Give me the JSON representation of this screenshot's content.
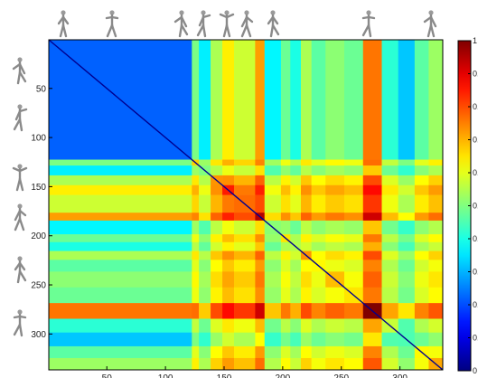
{
  "chart_data": {
    "type": "heatmap",
    "title": "",
    "xlabel": "",
    "ylabel": "",
    "n": 336,
    "colormap": "jet",
    "value_range": [
      0,
      1
    ],
    "x_ticks": [
      50,
      100,
      150,
      200,
      250,
      300
    ],
    "y_ticks": [
      50,
      100,
      150,
      200,
      250,
      300
    ],
    "colorbar_ticks": [
      "1",
      "0.",
      "0.",
      "0.",
      "0.",
      "0.",
      "0.",
      "0.",
      "0.",
      "0.",
      "0"
    ],
    "segments": [
      {
        "start": 1,
        "end": 122,
        "level": 0.22
      },
      {
        "start": 123,
        "end": 128,
        "level": 0.62
      },
      {
        "start": 129,
        "end": 138,
        "level": 0.45
      },
      {
        "start": 139,
        "end": 148,
        "level": 0.68
      },
      {
        "start": 149,
        "end": 158,
        "level": 0.8
      },
      {
        "start": 159,
        "end": 176,
        "level": 0.72
      },
      {
        "start": 177,
        "end": 184,
        "level": 0.9
      },
      {
        "start": 185,
        "end": 198,
        "level": 0.46
      },
      {
        "start": 199,
        "end": 206,
        "level": 0.6
      },
      {
        "start": 207,
        "end": 215,
        "level": 0.5
      },
      {
        "start": 216,
        "end": 224,
        "level": 0.68
      },
      {
        "start": 225,
        "end": 236,
        "level": 0.58
      },
      {
        "start": 237,
        "end": 252,
        "level": 0.64
      },
      {
        "start": 253,
        "end": 268,
        "level": 0.6
      },
      {
        "start": 269,
        "end": 284,
        "level": 0.95
      },
      {
        "start": 285,
        "end": 298,
        "level": 0.52
      },
      {
        "start": 299,
        "end": 312,
        "level": 0.4
      },
      {
        "start": 313,
        "end": 324,
        "level": 0.58
      },
      {
        "start": 325,
        "end": 336,
        "level": 0.66
      }
    ]
  },
  "figures": {
    "top_icons": [
      "pose-icon",
      "pose-icon",
      "pose-icon",
      "pose-icon",
      "pose-icon",
      "pose-icon",
      "pose-icon",
      "pose-icon",
      "pose-icon"
    ],
    "left_icons": [
      "pose-icon",
      "pose-icon",
      "pose-icon",
      "pose-icon",
      "pose-icon",
      "pose-icon"
    ]
  }
}
